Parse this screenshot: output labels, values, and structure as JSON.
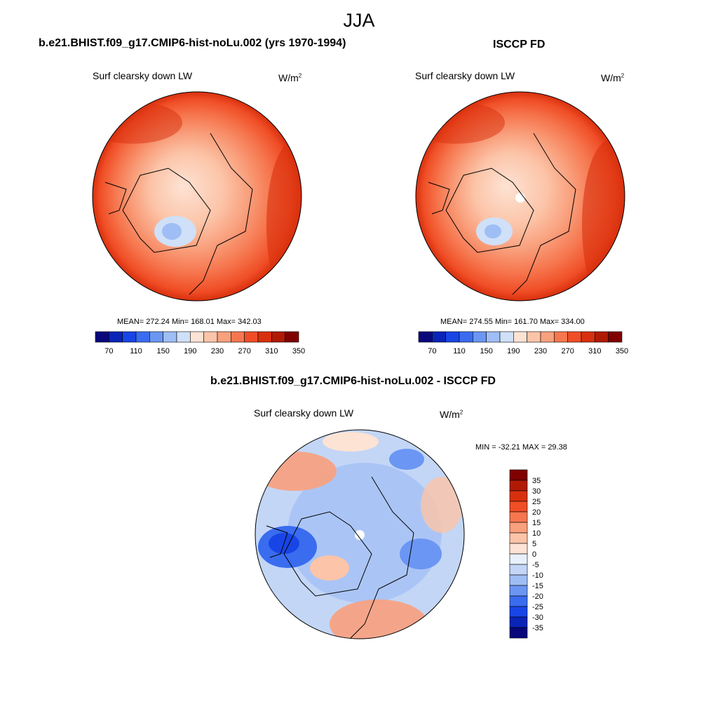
{
  "page": {
    "title": "JJA"
  },
  "panels": [
    {
      "title": "b.e21.BHIST.f09_g17.CMIP6-hist-noLu.002 (yrs 1970-1994)",
      "variable": "Surf clearsky down LW",
      "units": "W/m",
      "units_sup": "2",
      "stats": "MEAN= 272.24  Min= 168.01  Max= 342.03"
    },
    {
      "title": "ISCCP FD",
      "variable": "Surf clearsky down LW",
      "units": "W/m",
      "units_sup": "2",
      "stats": "MEAN= 274.55  Min= 161.70  Max= 334.00"
    },
    {
      "title": "b.e21.BHIST.f09_g17.CMIP6-hist-noLu.002 - ISCCP FD",
      "variable": "Surf clearsky down LW",
      "units": "W/m",
      "units_sup": "2",
      "stats": "MIN = -32.21 MAX =  29.38"
    }
  ],
  "colorbar_abs": {
    "labels": [
      "70",
      "110",
      "150",
      "190",
      "230",
      "270",
      "310",
      "350"
    ],
    "colors": [
      "#08087a",
      "#0a24b8",
      "#1845e6",
      "#3a6cf0",
      "#6b96f3",
      "#9fbef5",
      "#cfe0f8",
      "#fde3d4",
      "#fcc4a8",
      "#f9a07d",
      "#f6774f",
      "#f04e26",
      "#d8300e",
      "#b01a05",
      "#800000"
    ]
  },
  "colorbar_diff": {
    "labels": [
      "35",
      "30",
      "25",
      "20",
      "15",
      "10",
      "5",
      "0",
      "-5",
      "-10",
      "-15",
      "-20",
      "-25",
      "-30",
      "-35"
    ],
    "colors": [
      "#800000",
      "#b01a05",
      "#d8300e",
      "#f04e26",
      "#f6774f",
      "#f9a07d",
      "#fcc4a8",
      "#fde3d4",
      "#e8f0fb",
      "#c3d6f6",
      "#9fbef5",
      "#6b96f3",
      "#3a6cf0",
      "#1845e6",
      "#0a24b8",
      "#08087a"
    ]
  },
  "chart_data": [
    {
      "type": "heatmap",
      "projection": "north polar stereographic",
      "title": "b.e21.BHIST.f09_g17.CMIP6-hist-noLu.002 (yrs 1970-1994)",
      "variable": "Surf clearsky down LW",
      "units": "W/m2",
      "mean": 272.24,
      "min": 168.01,
      "max": 342.03,
      "color_levels": [
        70,
        90,
        110,
        130,
        150,
        170,
        190,
        210,
        230,
        250,
        270,
        290,
        310,
        330,
        350
      ]
    },
    {
      "type": "heatmap",
      "projection": "north polar stereographic",
      "title": "ISCCP FD",
      "variable": "Surf clearsky down LW",
      "units": "W/m2",
      "mean": 274.55,
      "min": 161.7,
      "max": 334.0,
      "color_levels": [
        70,
        90,
        110,
        130,
        150,
        170,
        190,
        210,
        230,
        250,
        270,
        290,
        310,
        330,
        350
      ]
    },
    {
      "type": "heatmap",
      "projection": "north polar stereographic",
      "title": "b.e21.BHIST.f09_g17.CMIP6-hist-noLu.002 - ISCCP FD",
      "variable": "Surf clearsky down LW",
      "units": "W/m2",
      "min": -32.21,
      "max": 29.38,
      "color_levels": [
        -35,
        -30,
        -25,
        -20,
        -15,
        -10,
        -5,
        0,
        5,
        10,
        15,
        20,
        25,
        30,
        35
      ]
    }
  ]
}
